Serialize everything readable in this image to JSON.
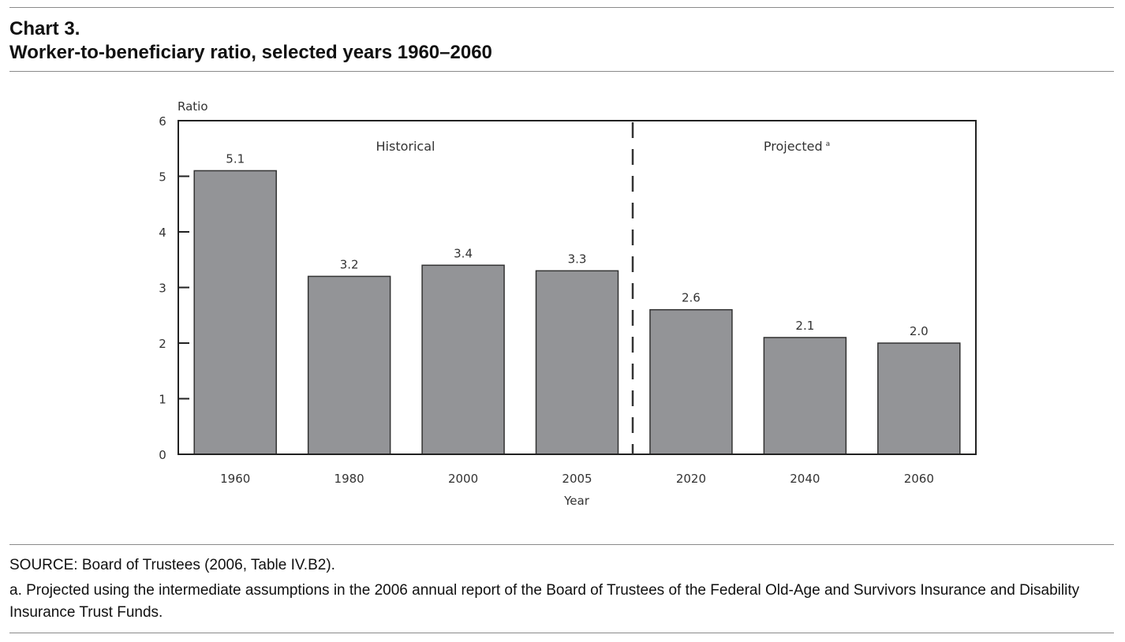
{
  "header": {
    "label": "Chart 3.",
    "title": "Worker-to-beneficiary ratio, selected years 1960–2060"
  },
  "chart_data": {
    "type": "bar",
    "ylabel": "Ratio",
    "xlabel": "Year",
    "ylim": [
      0,
      6
    ],
    "yticks": [
      0,
      1,
      2,
      3,
      4,
      5,
      6
    ],
    "grid": false,
    "categories": [
      "1960",
      "1980",
      "2000",
      "2005",
      "2020",
      "2040",
      "2060"
    ],
    "values": [
      5.1,
      3.2,
      3.4,
      3.3,
      2.6,
      2.1,
      2.0
    ],
    "value_labels": [
      "5.1",
      "3.2",
      "3.4",
      "3.3",
      "2.6",
      "2.1",
      "2.0"
    ],
    "bar_color": "#939497",
    "sections": [
      {
        "label": "Historical",
        "categories": [
          "1960",
          "1980",
          "2000",
          "2005"
        ]
      },
      {
        "label": "Projected",
        "marker": "a",
        "categories": [
          "2020",
          "2040",
          "2060"
        ]
      }
    ]
  },
  "notes": {
    "source": "SOURCE: Board of Trustees (2006, Table IV.B2).",
    "footnote": "a. Projected using the intermediate assumptions in the 2006 annual report of the Board of Trustees of the Federal Old-Age and Survivors Insurance and Disability Insurance Trust Funds."
  }
}
